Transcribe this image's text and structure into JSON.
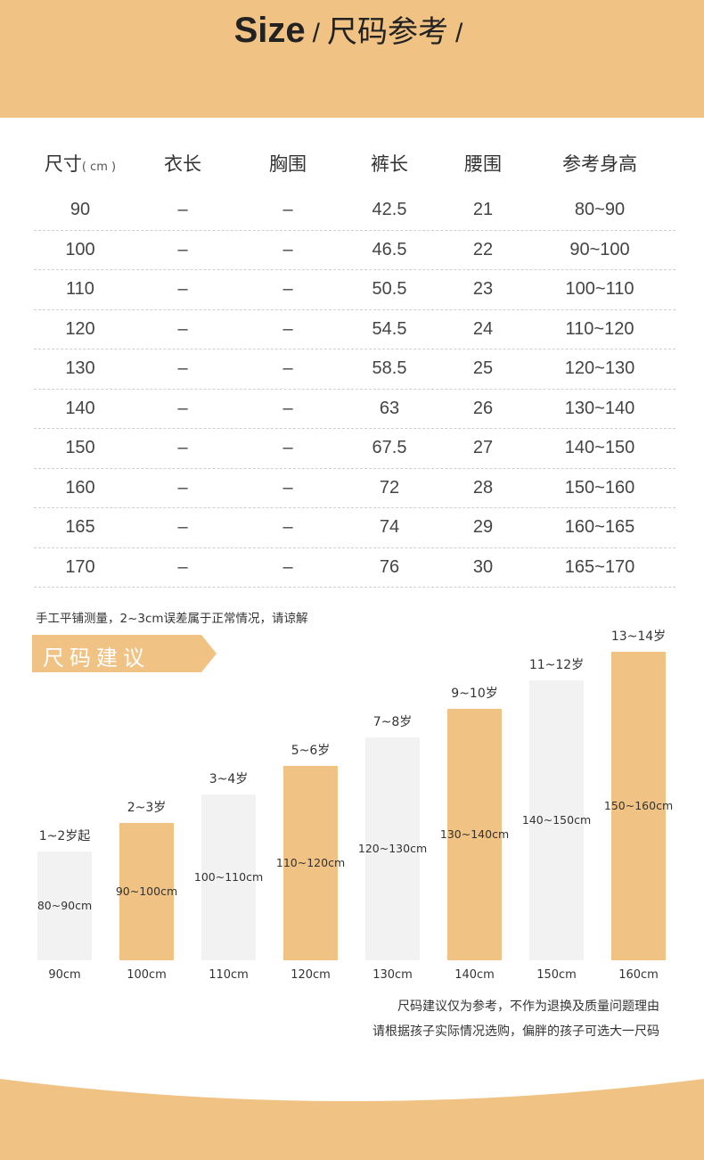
{
  "header": {
    "title_en": "Size",
    "slash1": "/",
    "title_cn": "尺码参考",
    "slash2": "/"
  },
  "table": {
    "headers": [
      "尺寸",
      "衣长",
      "胸围",
      "裤长",
      "腰围",
      "参考身高"
    ],
    "unit": "( cm )",
    "rows": [
      [
        "90",
        "–",
        "–",
        "42.5",
        "21",
        "80~90"
      ],
      [
        "100",
        "–",
        "–",
        "46.5",
        "22",
        "90~100"
      ],
      [
        "110",
        "–",
        "–",
        "50.5",
        "23",
        "100~110"
      ],
      [
        "120",
        "–",
        "–",
        "54.5",
        "24",
        "110~120"
      ],
      [
        "130",
        "–",
        "–",
        "58.5",
        "25",
        "120~130"
      ],
      [
        "140",
        "–",
        "–",
        "63",
        "26",
        "130~140"
      ],
      [
        "150",
        "–",
        "–",
        "67.5",
        "27",
        "140~150"
      ],
      [
        "160",
        "–",
        "–",
        "72",
        "28",
        "150~160"
      ],
      [
        "165",
        "–",
        "–",
        "74",
        "29",
        "160~165"
      ],
      [
        "170",
        "–",
        "–",
        "76",
        "30",
        "165~170"
      ]
    ]
  },
  "note": "手工平铺测量，2~3cm误差属于正常情况，请谅解",
  "advice_title": "尺码建议",
  "colors": {
    "accent": "#f0c283",
    "gray_bar": "#f2f2f2"
  },
  "chart_data": {
    "type": "bar",
    "categories": [
      "90cm",
      "100cm",
      "110cm",
      "120cm",
      "130cm",
      "140cm",
      "150cm",
      "160cm"
    ],
    "ages": [
      "1~2岁起",
      "2~3岁",
      "3~4岁",
      "5~6岁",
      "7~8岁",
      "9~10岁",
      "11~12岁",
      "13~14岁"
    ],
    "bar_labels": [
      "80~90cm",
      "90~100cm",
      "100~110cm",
      "110~120cm",
      "120~130cm",
      "130~140cm",
      "140~150cm",
      "150~160cm"
    ],
    "values": [
      90,
      100,
      110,
      120,
      130,
      140,
      150,
      160
    ]
  },
  "disclaimer": [
    "尺码建议仅为参考，不作为退换及质量问题理由",
    "请根据孩子实际情况选购，偏胖的孩子可选大一尺码"
  ]
}
